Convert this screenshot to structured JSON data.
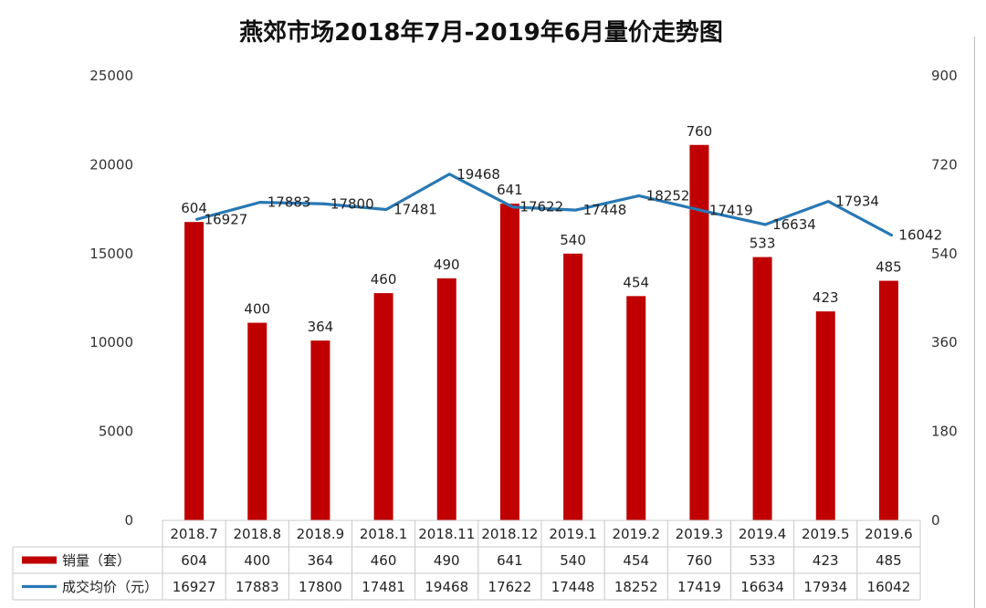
{
  "chart_data": {
    "type": "bar",
    "title": "燕郊市场2018年7月-2019年6月量价走势图",
    "categories": [
      "2018.7",
      "2018.8",
      "2018.9",
      "2018.1",
      "2018.11",
      "2018.12",
      "2019.1",
      "2019.2",
      "2019.3",
      "2019.4",
      "2019.5",
      "2019.6"
    ],
    "series": [
      {
        "name": "销量（套）",
        "type": "bar",
        "axis": "right",
        "color": "#c00000",
        "values": [
          604,
          400,
          364,
          460,
          490,
          641,
          540,
          454,
          760,
          533,
          423,
          485
        ]
      },
      {
        "name": "成交均价（元）",
        "type": "line",
        "axis": "left",
        "color": "#2878b4",
        "values": [
          16927,
          17883,
          17800,
          17481,
          19468,
          17622,
          17448,
          18252,
          17419,
          16634,
          17934,
          16042
        ]
      }
    ],
    "y_left": {
      "ylim": [
        0,
        25000
      ],
      "ticks": [
        "0",
        "5000",
        "10000",
        "15000",
        "20000",
        "25000"
      ]
    },
    "y_right": {
      "ylim": [
        0,
        900
      ],
      "ticks": [
        "0",
        "180",
        "360",
        "540",
        "720",
        "900"
      ]
    },
    "grid": false,
    "legend": "data-table below chart"
  }
}
